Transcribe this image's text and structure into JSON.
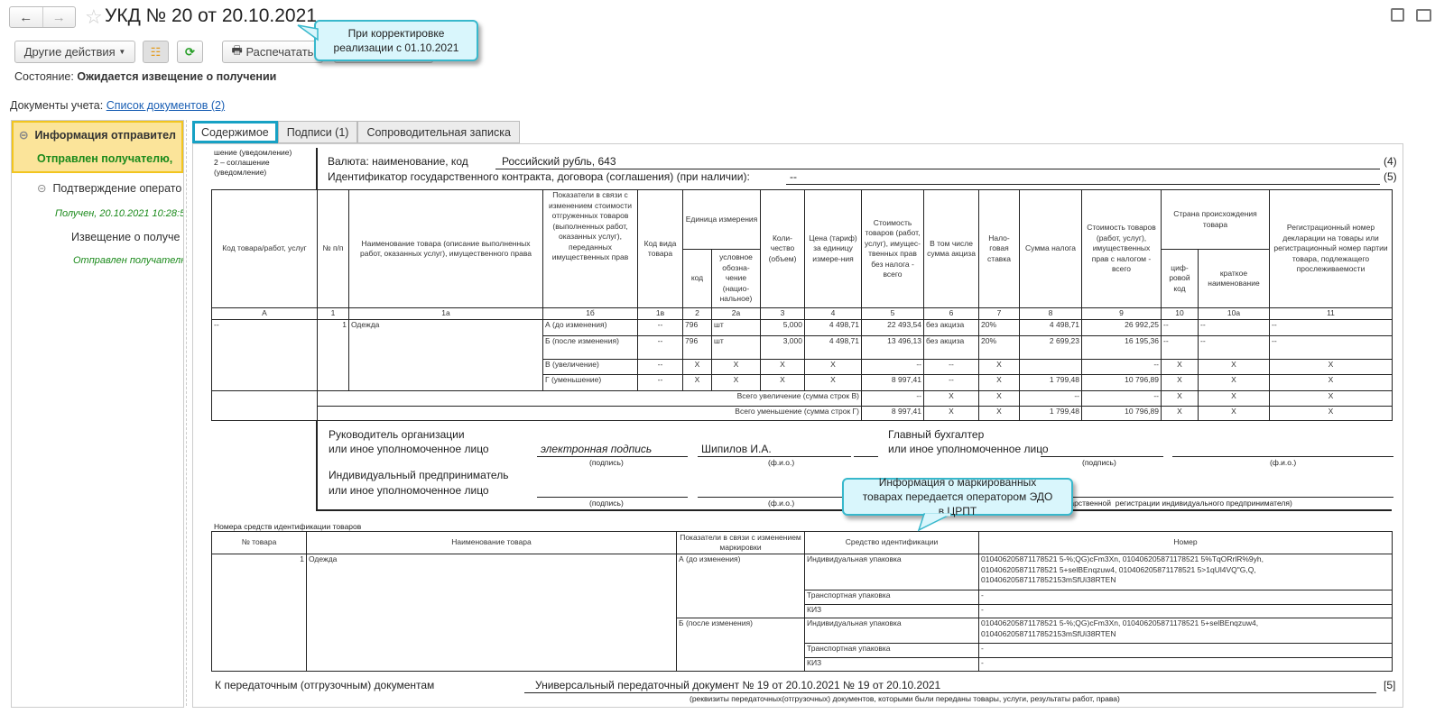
{
  "window": {
    "title": "УКД № 20 от 20.10.2021",
    "icons": [
      "save-icon",
      "print-icon"
    ]
  },
  "toolbar": {
    "other_actions": "Другие действия",
    "print": "Распечатать"
  },
  "status": {
    "label": "Состояние:",
    "value": "Ожидается извещение о получении"
  },
  "accounting_docs": {
    "label": "Документы учета:",
    "link": "Список документов (2)"
  },
  "callouts": {
    "top": "При корректировке реализации с 01.10.2021",
    "middle": "Информация о маркированных товарах передается оператором ЭДО в ЦРПТ"
  },
  "left_panel": {
    "items": [
      {
        "title": "Информация отправител",
        "status": "Отправлен получателю,"
      },
      {
        "title": "Подтверждение операто",
        "status": "Получен, 20.10.2021 10:28:5"
      },
      {
        "title": "Извещение о получе",
        "status": "Отправлен получателю"
      }
    ]
  },
  "tabs": [
    "Содержимое",
    "Подписи (1)",
    "Сопроводительная записка"
  ],
  "doc": {
    "side_note": [
      "шение (уведомление)",
      "2 – соглашение",
      "(уведомление)"
    ],
    "currency_label": "Валюта: наименование, код",
    "currency_value": "Российский рубль, 643",
    "currency_ref": "(4)",
    "contract_label": "Идентификатор государственного контракта, договора (соглашения) (при наличии):",
    "contract_value": "--",
    "contract_ref": "(5)",
    "headers": {
      "A": "Код товара/работ, услуг",
      "n1": "№ п/п",
      "n1a": "Наименование товара (описание выполненных работ, оказанных услуг), имущественного права",
      "n1b": "Показатели в связи с изменением стоимости отгруженных товаров (выполненных работ, оказанных услуг), переданных имущественных прав",
      "n1v": "Код вида товара",
      "unit": "Единица измерения",
      "n2": "код",
      "n2a": "условное обозна-чение (нацио-нальное)",
      "n3": "Коли-чество (объем)",
      "n4": "Цена (тариф) за единицу измере-ния",
      "n5": "Стоимость товаров (работ, услуг), имущес-твенных прав без налога - всего",
      "n6": "В том числе сумма акциза",
      "n7": "Нало-говая ставка",
      "n8": "Сумма налога",
      "n9": "Стоимость товаров (работ, услуг), имущественных прав с налогом - всего",
      "country": "Страна происхождения товара",
      "n10": "циф-ровой код",
      "n10a": "краткое наименование",
      "n11": "Регистрационный номер декларации на товары или регистрационный номер партии товара, подлежащего прослеживаемости"
    },
    "col_numbers": [
      "А",
      "1",
      "1а",
      "1б",
      "1в",
      "2",
      "2а",
      "3",
      "4",
      "5",
      "6",
      "7",
      "8",
      "9",
      "10",
      "10а",
      "11"
    ],
    "item": {
      "code": "--",
      "num": "1",
      "name": "Одежда"
    },
    "rows": [
      [
        "А (до изменения)",
        "--",
        "796",
        "шт",
        "5,000",
        "4 498,71",
        "22 493,54",
        "без акциза",
        "20%",
        "4 498,71",
        "26 992,25",
        "--",
        "--",
        "--"
      ],
      [
        "Б (после изменения)",
        "--",
        "796",
        "шт",
        "3,000",
        "4 498,71",
        "13 496,13",
        "без акциза",
        "20%",
        "2 699,23",
        "16 195,36",
        "--",
        "--",
        "--"
      ],
      [
        "В (увеличение)",
        "--",
        "X",
        "X",
        "X",
        "X",
        "--",
        "--",
        "X",
        "",
        "--",
        "X",
        "X",
        "X"
      ],
      [
        "Г (уменьшение)",
        "--",
        "X",
        "X",
        "X",
        "X",
        "8 997,41",
        "--",
        "X",
        "1 799,48",
        "10 796,89",
        "X",
        "X",
        "X"
      ]
    ],
    "totals": [
      {
        "label": "Всего увеличение (сумма строк В)",
        "values": [
          "--",
          "X",
          "X",
          "--",
          "--",
          "X",
          "X",
          "X"
        ]
      },
      {
        "label": "Всего уменьшение (сумма строк Г)",
        "values": [
          "8 997,41",
          "X",
          "X",
          "1 799,48",
          "10 796,89",
          "X",
          "X",
          "X"
        ]
      }
    ],
    "signatures": {
      "head_label_1": "Руководитель организации",
      "head_label_2": "или иное уполномоченное лицо",
      "head_signature": "электронная подпись",
      "head_name": "Шипилов И.А.",
      "accountant_label_1": "Главный бухгалтер",
      "accountant_label_2": "или иное уполномоченное лицо",
      "ip_label_1": "Индивидуальный предприниматель",
      "ip_label_2": "или иное уполномоченное лицо",
      "caption_signature": "(подпись)",
      "caption_name": "(ф.и.о.)",
      "caption_registration": "(реквизиты свидетельства о государственной  регистрации индивидуального предпринимателя)"
    },
    "ident": {
      "title": "Номера средств идентификации товаров",
      "headers": [
        "№ товара",
        "Наименование товара",
        "Показатели в связи с изменением маркировки",
        "Средство идентификации",
        "Номер"
      ],
      "item_num": "1",
      "item_name": "Одежда",
      "groups": [
        {
          "label": "А (до изменения)",
          "rows": [
            {
              "type": "Индивидуальная упаковка",
              "lines": [
                "010406205871178521 5-%;QG)cFm3Xn, 010406205871178521 5%TqORrlR%9yh,",
                "010406205871178521 5+selBEnqzuw4, 010406205871178521 5>1qUl4VQ\"G,Q,",
                "01040620587117852153mSfUi38RTEN"
              ]
            },
            {
              "type": "Транспортная упаковка",
              "lines": [
                "-"
              ]
            },
            {
              "type": "КИЗ",
              "lines": [
                "-"
              ]
            }
          ]
        },
        {
          "label": "Б (после изменения)",
          "rows": [
            {
              "type": "Индивидуальная упаковка",
              "lines": [
                "010406205871178521 5-%;QG)cFm3Xn, 010406205871178521 5+selBEnqzuw4,",
                "01040620587117852153mSfUi38RTEN"
              ]
            },
            {
              "type": "Транспортная упаковка",
              "lines": [
                "-"
              ]
            },
            {
              "type": "КИЗ",
              "lines": [
                "-"
              ]
            }
          ]
        }
      ]
    },
    "transfer": {
      "label": "К передаточным (отгрузочным) документам",
      "value": "Универсальный передаточный документ № 19 от 20.10.2021 № 19 от 20.10.2021",
      "ref": "[5]",
      "caption": "(реквизиты передаточных(отгрузочных) документов, которыми были переданы товары, услуги, результаты работ, права)"
    }
  },
  "colors": {
    "accent": "#17a1c4",
    "selected_bg": "#fbe49a",
    "link": "#1a5fb4",
    "status_green": "#1b8a1b",
    "callout_bg": "#d9f6fc"
  }
}
